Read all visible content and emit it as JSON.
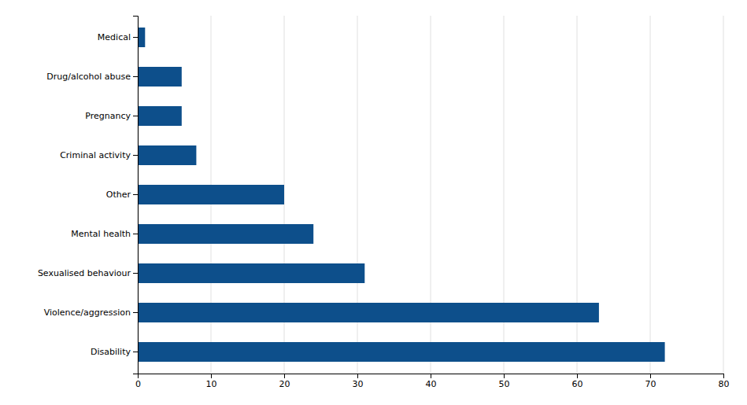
{
  "chart_data": {
    "type": "bar",
    "orientation": "horizontal",
    "categories": [
      "Disability",
      "Violence/aggression",
      "Sexualised behaviour",
      "Mental health",
      "Other",
      "Criminal activity",
      "Pregnancy",
      "Drug/alcohol abuse",
      "Medical"
    ],
    "values": [
      72,
      63,
      31,
      24,
      20,
      8,
      6,
      6,
      1
    ],
    "color": "#0d4f8b",
    "xlim": [
      0,
      80
    ],
    "xticks": [
      0,
      10,
      20,
      30,
      40,
      50,
      60,
      70,
      80
    ],
    "grid": true
  }
}
